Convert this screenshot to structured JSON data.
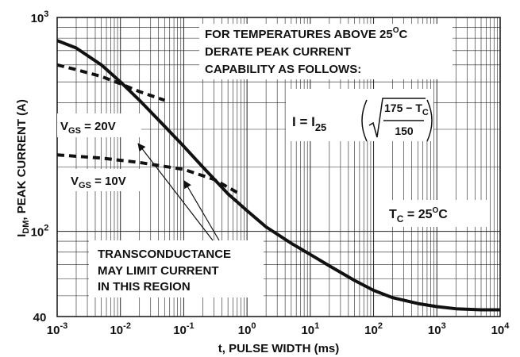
{
  "chart_data": {
    "type": "line",
    "x_scale": "log",
    "y_scale": "log",
    "xlim": [
      0.001,
      10000
    ],
    "ylim": [
      40,
      1000
    ],
    "xlabel": "t, PULSE WIDTH (ms)",
    "ylabel": {
      "base": "I",
      "sub": "DM",
      "rest": ", PEAK CURRENT (A)"
    },
    "x_ticks": [
      {
        "value": 0.001,
        "base": "10",
        "exp": "-3"
      },
      {
        "value": 0.01,
        "base": "10",
        "exp": "-2"
      },
      {
        "value": 0.1,
        "base": "10",
        "exp": "-1"
      },
      {
        "value": 1,
        "base": "10",
        "exp": "0"
      },
      {
        "value": 10,
        "base": "10",
        "exp": "1"
      },
      {
        "value": 100,
        "base": "10",
        "exp": "2"
      },
      {
        "value": 1000,
        "base": "10",
        "exp": "3"
      },
      {
        "value": 10000,
        "base": "10",
        "exp": "4"
      }
    ],
    "y_ticks": [
      {
        "value": 1000,
        "base": "10",
        "exp": "3"
      },
      {
        "value": 100,
        "base": "10",
        "exp": "2"
      },
      {
        "value": 40,
        "base": "40",
        "exp": ""
      }
    ],
    "grid": true,
    "series": [
      {
        "style": "solid",
        "x": [
          0.001,
          0.002,
          0.005,
          0.01,
          0.02,
          0.05,
          0.1,
          0.2,
          0.5,
          1,
          2,
          5,
          10,
          20,
          50,
          100,
          200,
          500,
          1000,
          2000,
          5000,
          10000
        ],
        "y": [
          780,
          720,
          600,
          500,
          410,
          310,
          250,
          200,
          150,
          125,
          105,
          88,
          78,
          69,
          59,
          53,
          49,
          46,
          44.5,
          43.5,
          43,
          43
        ]
      },
      {
        "style": "dashed",
        "x": [
          0.001,
          0.002,
          0.005,
          0.01,
          0.02,
          0.05
        ],
        "y": [
          600,
          570,
          530,
          490,
          450,
          410
        ]
      },
      {
        "style": "dashed",
        "x": [
          0.001,
          0.005,
          0.02,
          0.1,
          0.3,
          0.7
        ],
        "y": [
          228,
          220,
          210,
          195,
          175,
          152
        ]
      }
    ],
    "annotations": {
      "vgs_20": {
        "base": "V",
        "sub": "GS",
        "rest": " = 20V"
      },
      "vgs_10": {
        "base": "V",
        "sub": "GS",
        "rest": " = 10V"
      },
      "derate": [
        "FOR TEMPERATURES ABOVE 25",
        "O",
        "C",
        "DERATE PEAK CURRENT",
        "CAPABILITY AS FOLLOWS:"
      ],
      "formula": {
        "lhs": "I  =  I",
        "sub": "25",
        "numerator": "175 − T",
        "numerator_sub": "C",
        "denominator": "150"
      },
      "tc": {
        "base": "T",
        "sub": "C",
        "rest": " = 25",
        "sup": "O",
        "unit": "C"
      },
      "transconductance": [
        "TRANSCONDUCTANCE",
        "MAY LIMIT CURRENT",
        "IN THIS REGION"
      ]
    }
  }
}
